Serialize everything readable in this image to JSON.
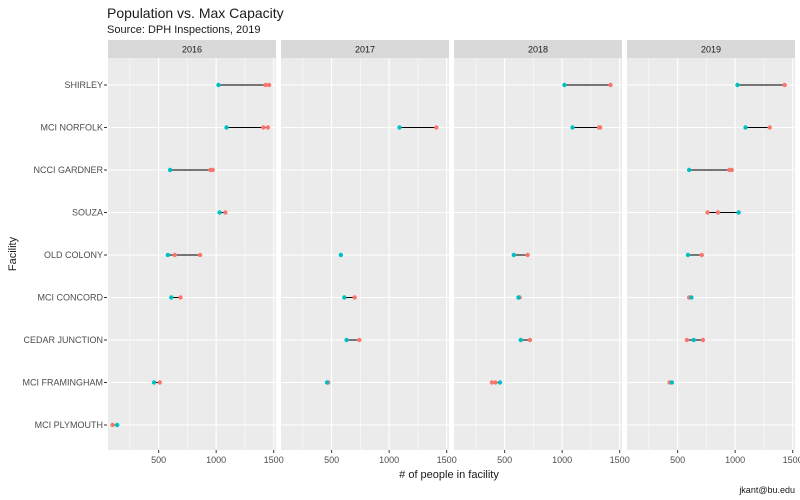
{
  "title": "Population vs. Max Capacity",
  "subtitle": "Source: DPH Inspections, 2019",
  "caption": "jkant@bu.edu",
  "colors": {
    "panel_bg": "#ebebeb",
    "strip_bg": "#d9d9d9",
    "grid": "#ffffff",
    "line": "#000000",
    "point_a": "#00bfc4",
    "point_b": "#f8766d"
  },
  "chart_data": {
    "type": "dumbbell",
    "xlabel": "# of people in facility",
    "ylabel": "Facility",
    "xlim": [
      60,
      1520
    ],
    "x_ticks": [
      500,
      1000,
      1500
    ],
    "x_tick_labels": [
      "500",
      "1000",
      "1500"
    ],
    "facilities": [
      "SHIRLEY",
      "MCI NORFOLK",
      "NCCI GARDNER",
      "SOUZA",
      "OLD COLONY",
      "MCI CONCORD",
      "CEDAR JUNCTION",
      "MCI FRAMINGHAM",
      "MCI PLYMOUTH"
    ],
    "panels": [
      {
        "label": "2016",
        "rows": [
          {
            "facility": "SHIRLEY",
            "teal": [
              1020
            ],
            "red": [
              1430,
              1460
            ]
          },
          {
            "facility": "MCI NORFOLK",
            "teal": [
              1090
            ],
            "red": [
              1410,
              1450
            ]
          },
          {
            "facility": "NCCI GARDNER",
            "teal": [
              600
            ],
            "red": [
              950,
              970
            ]
          },
          {
            "facility": "SOUZA",
            "teal": [
              1030
            ],
            "red": [
              1080
            ]
          },
          {
            "facility": "OLD COLONY",
            "teal": [
              580
            ],
            "red": [
              640,
              860
            ]
          },
          {
            "facility": "MCI CONCORD",
            "teal": [
              610
            ],
            "red": [
              690
            ]
          },
          {
            "facility": "CEDAR JUNCTION",
            "teal": [],
            "red": []
          },
          {
            "facility": "MCI FRAMINGHAM",
            "teal": [
              460
            ],
            "red": [
              510
            ]
          },
          {
            "facility": "MCI PLYMOUTH",
            "teal": [
              140
            ],
            "red": [
              100
            ]
          }
        ]
      },
      {
        "label": "2017",
        "rows": [
          {
            "facility": "SHIRLEY",
            "teal": [],
            "red": []
          },
          {
            "facility": "MCI NORFOLK",
            "teal": [
              1090
            ],
            "red": [
              1410
            ]
          },
          {
            "facility": "NCCI GARDNER",
            "teal": [],
            "red": []
          },
          {
            "facility": "SOUZA",
            "teal": [],
            "red": []
          },
          {
            "facility": "OLD COLONY",
            "teal": [
              580
            ],
            "red": []
          },
          {
            "facility": "MCI CONCORD",
            "teal": [
              610
            ],
            "red": [
              700
            ]
          },
          {
            "facility": "CEDAR JUNCTION",
            "teal": [
              630
            ],
            "red": [
              740
            ]
          },
          {
            "facility": "MCI FRAMINGHAM",
            "teal": [
              460
            ],
            "red": [
              470
            ]
          },
          {
            "facility": "MCI PLYMOUTH",
            "teal": [],
            "red": []
          }
        ]
      },
      {
        "label": "2018",
        "rows": [
          {
            "facility": "SHIRLEY",
            "teal": [
              1020
            ],
            "red": [
              1420
            ]
          },
          {
            "facility": "MCI NORFOLK",
            "teal": [
              1090
            ],
            "red": [
              1320,
              1330
            ]
          },
          {
            "facility": "NCCI GARDNER",
            "teal": [],
            "red": []
          },
          {
            "facility": "SOUZA",
            "teal": [],
            "red": []
          },
          {
            "facility": "OLD COLONY",
            "teal": [
              580
            ],
            "red": [
              700
            ]
          },
          {
            "facility": "MCI CONCORD",
            "teal": [
              620
            ],
            "red": [
              630
            ]
          },
          {
            "facility": "CEDAR JUNCTION",
            "teal": [
              640
            ],
            "red": [
              720
            ]
          },
          {
            "facility": "MCI FRAMINGHAM",
            "teal": [
              460
            ],
            "red": [
              390,
              420
            ]
          },
          {
            "facility": "MCI PLYMOUTH",
            "teal": [],
            "red": []
          }
        ]
      },
      {
        "label": "2019",
        "rows": [
          {
            "facility": "SHIRLEY",
            "teal": [
              1020
            ],
            "red": [
              1430
            ]
          },
          {
            "facility": "MCI NORFOLK",
            "teal": [
              1090
            ],
            "red": [
              1300
            ]
          },
          {
            "facility": "NCCI GARDNER",
            "teal": [
              600
            ],
            "red": [
              950,
              970
            ]
          },
          {
            "facility": "SOUZA",
            "teal": [
              1030
            ],
            "red": [
              760,
              850
            ]
          },
          {
            "facility": "OLD COLONY",
            "teal": [
              590
            ],
            "red": [
              710
            ]
          },
          {
            "facility": "MCI CONCORD",
            "teal": [
              620
            ],
            "red": [
              600
            ]
          },
          {
            "facility": "CEDAR JUNCTION",
            "teal": [
              640
            ],
            "red": [
              580,
              720
            ]
          },
          {
            "facility": "MCI FRAMINGHAM",
            "teal": [
              450
            ],
            "red": [
              430
            ]
          },
          {
            "facility": "MCI PLYMOUTH",
            "teal": [],
            "red": []
          }
        ]
      }
    ]
  }
}
